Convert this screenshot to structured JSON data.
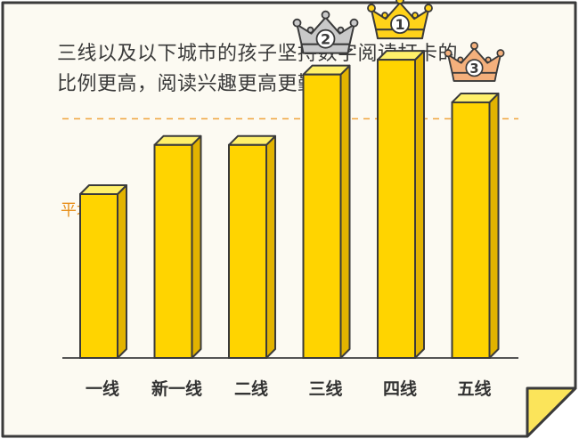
{
  "headline": {
    "line1": "三线以及以下城市的孩子坚持数字阅读打卡的",
    "line2": "比例更高，阅读兴趣更高更勤奋。"
  },
  "colors": {
    "background": "#fcfaf2",
    "border": "#3a3a3a",
    "bar_front": "#ffd400",
    "bar_side": "#e2b300",
    "bar_top": "#fff06a",
    "average_line": "#f0a43c",
    "average_label": "#e8901c",
    "corner_fold": "#fbe45a",
    "crown_gold": "#ffd21a",
    "crown_silver": "#c9c9c9",
    "crown_bronze": "#f4b07c"
  },
  "chart_data": {
    "type": "bar",
    "title": "",
    "xlabel": "",
    "ylabel": "",
    "categories": [
      "一线",
      "新一线",
      "二线",
      "三线",
      "四线",
      "五线"
    ],
    "values": [
      100,
      130,
      130,
      173,
      182,
      156
    ],
    "average_label": "平均线",
    "average_value": 146,
    "ylim": [
      0,
      200
    ],
    "grid": false,
    "legend": "none",
    "rankings": [
      {
        "category": "四线",
        "rank": "1",
        "crown": "gold"
      },
      {
        "category": "三线",
        "rank": "2",
        "crown": "silver"
      },
      {
        "category": "五线",
        "rank": "3",
        "crown": "bronze"
      }
    ]
  }
}
